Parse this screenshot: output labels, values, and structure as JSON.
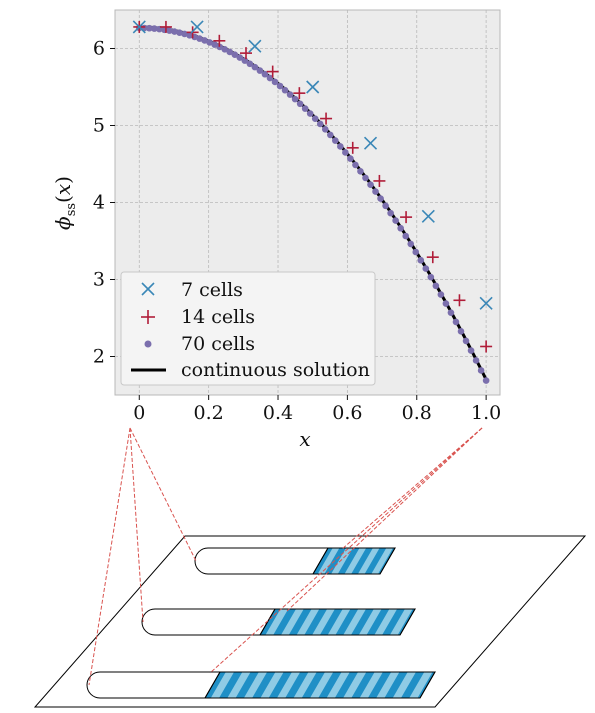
{
  "chart_data": {
    "type": "scatter",
    "xlabel": "x",
    "ylabel": "φ_ss(x)",
    "xlim": [
      -0.07,
      1.04
    ],
    "ylim": [
      1.5,
      6.5
    ],
    "xticks": [
      "0",
      "0.2",
      "0.4",
      "0.6",
      "0.8",
      "1.0"
    ],
    "yticks": [
      "2",
      "3",
      "4",
      "5",
      "6"
    ],
    "grid": true,
    "legend_position": "bottom-left",
    "series": [
      {
        "name": "7 cells",
        "marker": "x",
        "color": "#3a87b7",
        "x": [
          0,
          0.1667,
          0.3333,
          0.5,
          0.6667,
          0.8333,
          1.0
        ],
        "y": [
          6.28,
          6.28,
          6.03,
          5.5,
          4.77,
          3.82,
          2.69
        ]
      },
      {
        "name": "14 cells",
        "marker": "+",
        "color": "#b01c38",
        "x": [
          0,
          0.0769,
          0.1538,
          0.2308,
          0.3077,
          0.3846,
          0.4615,
          0.5385,
          0.6154,
          0.6923,
          0.7692,
          0.8462,
          0.9231,
          1.0
        ],
        "y": [
          6.28,
          6.28,
          6.21,
          6.1,
          5.94,
          5.7,
          5.42,
          5.09,
          4.71,
          4.28,
          3.81,
          3.29,
          2.73,
          2.13
        ]
      },
      {
        "name": "70 cells",
        "marker": "dot",
        "color": "#7b6fad",
        "count": 70
      },
      {
        "name": "continuous solution",
        "marker": "line",
        "color": "#000000",
        "phi0": 6.28,
        "phi1": 1.7
      }
    ]
  },
  "diagram": {
    "colors": {
      "dark_cell": "#1f8fc6",
      "light_cell": "#8fcbe5",
      "guide_line": "#d9534f",
      "outline": "#000000"
    },
    "channels": [
      {
        "cells": 7
      },
      {
        "cells": 14
      },
      {
        "cells": 70
      }
    ]
  }
}
